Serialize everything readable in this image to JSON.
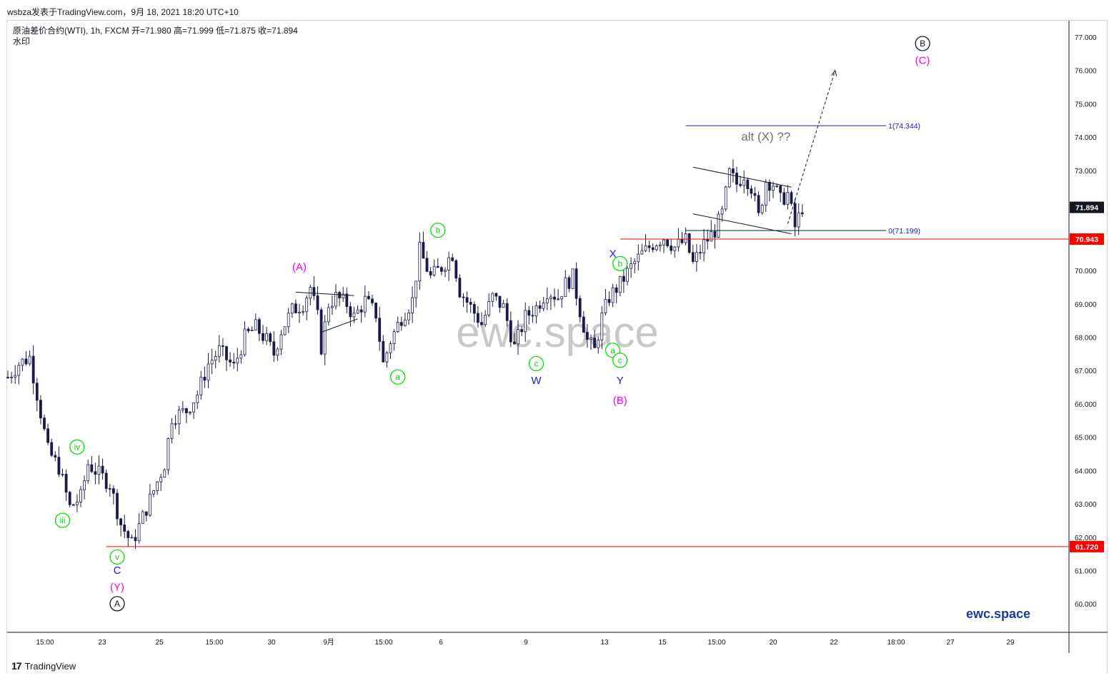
{
  "header": {
    "author_line": "wsbza发表于TradingView.com，9月 18, 2021 18:20 UTC+10"
  },
  "legend": {
    "symbol_line": "原油差价合约(WTI), 1h, FXCM  开=71.980  高=71.999  低=71.875  收=71.894",
    "watermark_label": "水印"
  },
  "footer": {
    "brand": "TradingView"
  },
  "colors": {
    "candle": "#1a1a4a",
    "support": "#ff0000",
    "fib": "#1a1ab8",
    "magenta": "#ff00ff",
    "green": "#00e000",
    "blue": "#1a1ad6",
    "grid": "#e6e6e6"
  },
  "chart_data": {
    "type": "candlestick",
    "symbol": "原油差价合约(WTI)",
    "interval": "1h",
    "exchange": "FXCM",
    "ohlc_last": {
      "open": 71.98,
      "high": 71.999,
      "low": 71.875,
      "close": 71.894
    },
    "ylim": [
      59.0,
      77.8
    ],
    "y_ticks": [
      "77.000",
      "76.000",
      "75.000",
      "74.000",
      "73.000",
      "72.000",
      "71.000",
      "70.000",
      "69.000",
      "68.000",
      "67.000",
      "66.000",
      "65.000",
      "64.000",
      "63.000",
      "62.000",
      "61.000",
      "60.000"
    ],
    "x_ticks": [
      "15:00",
      "23",
      "25",
      "15:00",
      "30",
      "9月",
      "15:00",
      "6",
      "9",
      "13",
      "15",
      "15:00",
      "20",
      "22",
      "18:00",
      "27",
      "29"
    ],
    "price_anchors": [
      [
        0,
        66.8
      ],
      [
        3,
        67.2
      ],
      [
        6,
        67.4
      ],
      [
        8,
        66.3
      ],
      [
        11,
        64.6
      ],
      [
        14,
        64.1
      ],
      [
        17,
        62.9
      ],
      [
        20,
        63.2
      ],
      [
        22,
        64.2
      ],
      [
        25,
        63.9
      ],
      [
        28,
        63.6
      ],
      [
        31,
        62.4
      ],
      [
        34,
        61.8
      ],
      [
        37,
        62.6
      ],
      [
        40,
        63.4
      ],
      [
        43,
        64.2
      ],
      [
        45,
        65.6
      ],
      [
        49,
        65.8
      ],
      [
        52,
        66.3
      ],
      [
        55,
        67.2
      ],
      [
        58,
        67.6
      ],
      [
        62,
        67.1
      ],
      [
        65,
        68.0
      ],
      [
        68,
        68.3
      ],
      [
        71,
        67.9
      ],
      [
        73,
        67.5
      ],
      [
        75,
        68.2
      ],
      [
        78,
        68.8
      ],
      [
        81,
        69.0
      ],
      [
        83,
        69.5
      ],
      [
        85,
        68.6
      ],
      [
        86,
        67.7
      ],
      [
        88,
        69.0
      ],
      [
        90,
        69.2
      ],
      [
        93,
        69.0
      ],
      [
        95,
        68.6
      ],
      [
        98,
        69.1
      ],
      [
        101,
        68.7
      ],
      [
        103,
        67.2
      ],
      [
        105,
        67.9
      ],
      [
        108,
        68.6
      ],
      [
        111,
        69.1
      ],
      [
        113,
        70.6
      ],
      [
        116,
        69.8
      ],
      [
        119,
        70.1
      ],
      [
        122,
        70.5
      ],
      [
        124,
        69.4
      ],
      [
        127,
        68.9
      ],
      [
        130,
        68.4
      ],
      [
        133,
        69.2
      ],
      [
        136,
        68.9
      ],
      [
        139,
        67.7
      ],
      [
        142,
        68.6
      ],
      [
        145,
        68.9
      ],
      [
        148,
        69.4
      ],
      [
        151,
        69.2
      ],
      [
        153,
        69.6
      ],
      [
        155,
        69.8
      ],
      [
        157,
        68.8
      ],
      [
        159,
        67.9
      ],
      [
        161,
        67.6
      ],
      [
        163,
        68.6
      ],
      [
        165,
        69.2
      ],
      [
        168,
        69.6
      ],
      [
        171,
        70.1
      ],
      [
        174,
        70.5
      ],
      [
        177,
        70.8
      ],
      [
        180,
        71.0
      ],
      [
        183,
        70.7
      ],
      [
        186,
        70.9
      ],
      [
        188,
        70.2
      ],
      [
        191,
        70.8
      ],
      [
        194,
        71.2
      ],
      [
        196,
        71.7
      ],
      [
        198,
        72.9
      ],
      [
        200,
        72.6
      ],
      [
        202,
        72.9
      ],
      [
        204,
        72.5
      ],
      [
        206,
        71.6
      ],
      [
        208,
        72.7
      ],
      [
        210,
        72.6
      ],
      [
        212,
        72.1
      ],
      [
        214,
        72.3
      ],
      [
        216,
        71.3
      ],
      [
        218,
        71.9
      ]
    ],
    "horizontal_levels": [
      {
        "price": 61.72,
        "label": "61.720",
        "color": "support"
      },
      {
        "price": 70.943,
        "label": "70.943",
        "color": "support"
      }
    ],
    "current_price_label": "71.894",
    "fib_levels": [
      {
        "label": "1(74.344)",
        "price": 74.344
      },
      {
        "label": "0(71.199)",
        "price": 71.199
      }
    ],
    "annotations": [
      {
        "text": "(A)",
        "color": "magenta",
        "circle": false,
        "i": 80,
        "price": 70.0
      },
      {
        "text": "b",
        "color": "green",
        "circle": true,
        "i": 118,
        "price": 71.1
      },
      {
        "text": "a",
        "color": "green",
        "circle": true,
        "i": 107,
        "price": 66.7
      },
      {
        "text": "c",
        "color": "green",
        "circle": true,
        "i": 145,
        "price": 67.1
      },
      {
        "text": "W",
        "color": "blue",
        "circle": false,
        "i": 145,
        "price": 66.6
      },
      {
        "text": "X",
        "color": "blue",
        "circle": false,
        "i": 166,
        "price": 70.4
      },
      {
        "text": "b",
        "color": "green",
        "circle": true,
        "i": 168,
        "price": 70.1
      },
      {
        "text": "a",
        "color": "green",
        "circle": true,
        "i": 166,
        "price": 67.5
      },
      {
        "text": "c",
        "color": "green",
        "circle": true,
        "i": 168,
        "price": 67.2
      },
      {
        "text": "Y",
        "color": "blue",
        "circle": false,
        "i": 168,
        "price": 66.6
      },
      {
        "text": "(B)",
        "color": "magenta",
        "circle": false,
        "i": 168,
        "price": 66.0
      },
      {
        "text": "iv",
        "color": "green",
        "circle": true,
        "i": 19,
        "price": 64.6
      },
      {
        "text": "iii",
        "color": "green",
        "circle": true,
        "i": 15,
        "price": 62.4
      },
      {
        "text": "v",
        "color": "green",
        "circle": true,
        "i": 30,
        "price": 61.3
      },
      {
        "text": "C",
        "color": "blue",
        "circle": false,
        "i": 30,
        "price": 60.9
      },
      {
        "text": "(Y)",
        "color": "magenta",
        "circle": false,
        "i": 30,
        "price": 60.4
      },
      {
        "text": "A",
        "color": "black",
        "circle": true,
        "i": 30,
        "price": 59.9
      },
      {
        "text": "B",
        "color": "black",
        "circle": true,
        "i": 251,
        "price": 76.7
      },
      {
        "text": "(C)",
        "color": "magenta",
        "circle": false,
        "i": 251,
        "price": 76.2
      },
      {
        "text": "alt (X) ??",
        "color": "gray",
        "circle": false,
        "i": 208,
        "price": 73.9
      }
    ],
    "watermark": "ewc.space",
    "brand_label": "ewc.space"
  }
}
